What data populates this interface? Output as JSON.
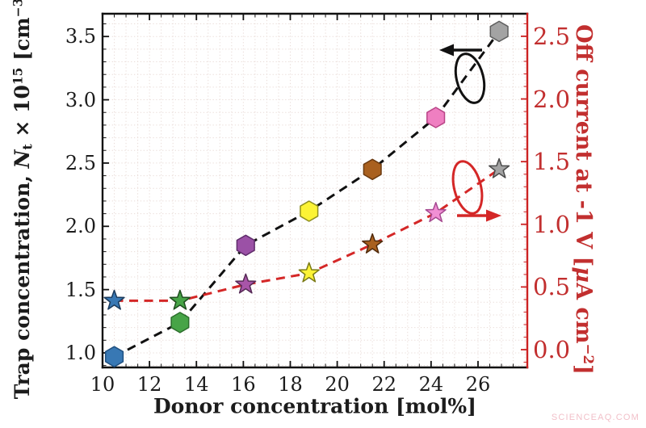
{
  "watermark": "SCIENCEAQ.COM",
  "chart_data": {
    "type": "line",
    "title": "",
    "xlabel": "Donor concentration [mol%]",
    "x_values": [
      10.5,
      13.3,
      16.1,
      18.8,
      21.5,
      24.2,
      26.9
    ],
    "series": [
      {
        "name": "trap-concentration",
        "axis": "left",
        "line_color": "#111111",
        "line_style": "dashed",
        "marker": "hexagon",
        "values": [
          0.97,
          1.24,
          1.85,
          2.12,
          2.45,
          2.86,
          3.54
        ],
        "marker_colors": [
          "#3878b4",
          "#47a447",
          "#9b51a6",
          "#fcf335",
          "#a9601f",
          "#ef7fc1",
          "#a3a3a3"
        ],
        "marker_edge_colors": [
          "#205080",
          "#2c6e2c",
          "#5f2c6b",
          "#8f8f1f",
          "#6b3a10",
          "#b94587",
          "#5f5f5f"
        ]
      },
      {
        "name": "off-current",
        "axis": "right",
        "line_color": "#d42727",
        "line_style": "dashed",
        "marker": "star",
        "values": [
          0.39,
          0.39,
          0.52,
          0.61,
          0.84,
          1.09,
          1.44
        ],
        "marker_colors": [
          "#3878b4",
          "#47a447",
          "#a855a8",
          "#fcf335",
          "#a9601f",
          "#f18fd4",
          "#a3a3a3"
        ],
        "marker_edge_colors": [
          "#1a3a5c",
          "#1e4d1e",
          "#552a55",
          "#7a7a15",
          "#50290a",
          "#a5488f",
          "#4a4a4a"
        ]
      }
    ],
    "x_ticks": [
      "10",
      "12",
      "14",
      "16",
      "18",
      "20",
      "22",
      "24",
      "26"
    ],
    "x_tick_values": [
      10,
      12,
      14,
      16,
      18,
      20,
      22,
      24,
      26
    ],
    "xlim": [
      10,
      28.1
    ],
    "left_axis": {
      "color": "#1c1c1c",
      "ticks": [
        "1.0",
        "1.5",
        "2.0",
        "2.5",
        "3.0",
        "3.5"
      ],
      "tick_values": [
        1.0,
        1.5,
        2.0,
        2.5,
        3.0,
        3.5
      ],
      "lim": [
        0.885,
        3.68
      ],
      "label_parts": {
        "p1": "Trap concentration, ",
        "nvar": "N",
        "nsub": "t",
        "p2": " × 10",
        "sup1": "15",
        "p3": " [cm",
        "sup2": "−3",
        "p4": "]"
      }
    },
    "right_axis": {
      "color": "#c22f2f",
      "axis_line_color": "#cc2222",
      "ticks": [
        "0.0",
        "0.5",
        "1.0",
        "1.5",
        "2.0",
        "2.5"
      ],
      "tick_values": [
        0.0,
        0.5,
        1.0,
        1.5,
        2.0,
        2.5
      ],
      "lim": [
        -0.142,
        2.68
      ],
      "label_parts": {
        "p1": "Off current at -1 V [",
        "mu": "μ",
        "p2": "A cm",
        "sup": "−2",
        "p3": "]"
      }
    },
    "grid": {
      "on": true,
      "x_step": 0.5,
      "y_step": 0.1,
      "color": "#e9dcd8",
      "style": "dotted"
    },
    "legend": "none"
  }
}
